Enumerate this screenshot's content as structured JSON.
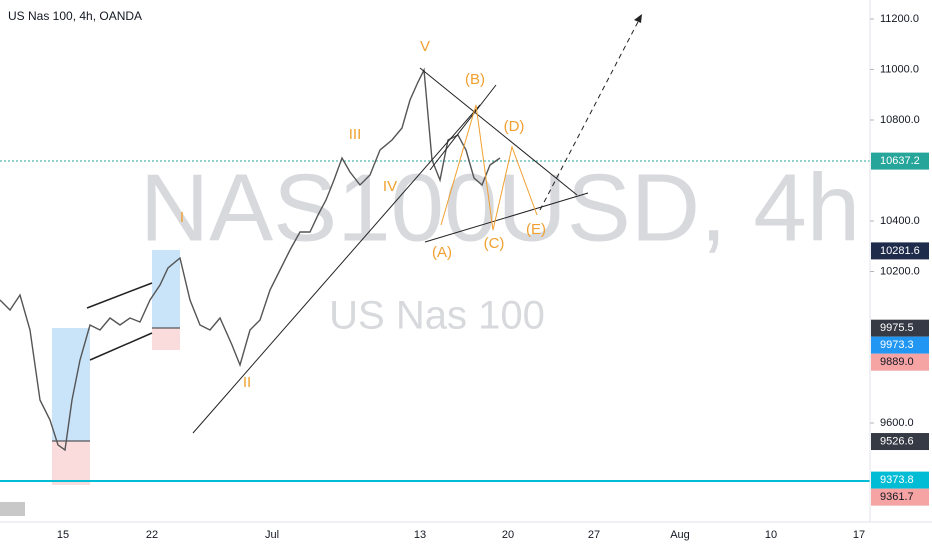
{
  "header": {
    "title": "US Nas 100, 4h, OANDA"
  },
  "watermark": {
    "symbol": "NAS100USD, 4h",
    "name": "US Nas 100"
  },
  "price_axis": {
    "ticks": [
      "11200.0",
      "11000.0",
      "10800.0",
      "10400.0",
      "10200.0",
      "9600.0"
    ]
  },
  "time_axis": {
    "labels": [
      "15",
      "22",
      "Jul",
      "13",
      "20",
      "27",
      "Aug",
      "10",
      "17"
    ]
  },
  "price_labels": [
    {
      "text": "10637.2",
      "color": "#26a69a",
      "text_color": "#ffffff"
    },
    {
      "text": "10281.6",
      "color": "#1e2b4a",
      "text_color": "#ffffff"
    },
    {
      "text": "9975.5",
      "color": "#363a45",
      "text_color": "#ffffff"
    },
    {
      "text": "9973.3",
      "color": "#2196f3",
      "text_color": "#ffffff"
    },
    {
      "text": "9889.0",
      "color": "#f5a3a3",
      "text_color": "#131722"
    },
    {
      "text": "9526.6",
      "color": "#363a45",
      "text_color": "#ffffff"
    },
    {
      "text": "9373.8",
      "color": "#00bcd4",
      "text_color": "#ffffff"
    },
    {
      "text": "9361.7",
      "color": "#f5a3a3",
      "text_color": "#131722"
    }
  ],
  "wave_labels": [
    "V",
    "(B)",
    "(D)",
    "III",
    "I",
    "IV",
    "(A)",
    "(C)",
    "(E)",
    "II"
  ]
}
